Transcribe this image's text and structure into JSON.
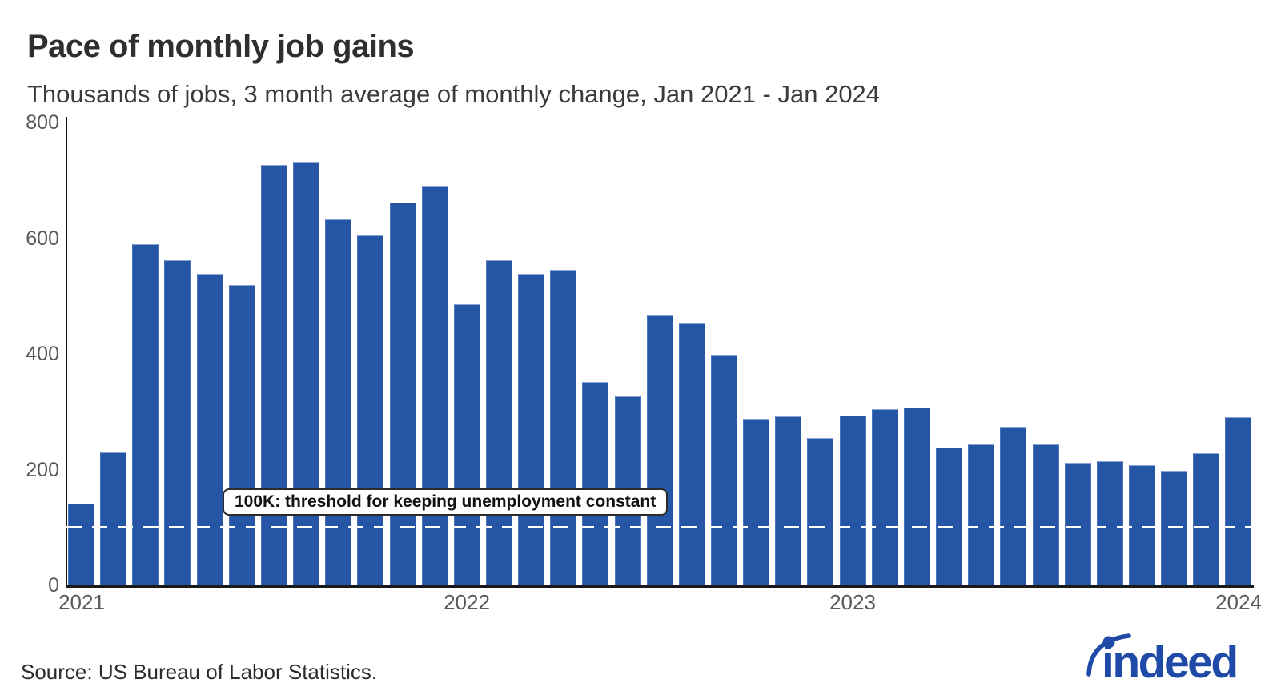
{
  "header": {
    "title": "Pace of monthly job gains",
    "subtitle": "Thousands of jobs, 3 month average of monthly change, Jan 2021 - Jan 2024"
  },
  "chart_data": {
    "type": "bar",
    "title": "Pace of monthly job gains",
    "subtitle": "Thousands of jobs, 3 month average of monthly change, Jan 2021 - Jan 2024",
    "categories": [
      "Jan 2021",
      "Feb 2021",
      "Mar 2021",
      "Apr 2021",
      "May 2021",
      "Jun 2021",
      "Jul 2021",
      "Aug 2021",
      "Sep 2021",
      "Oct 2021",
      "Nov 2021",
      "Dec 2021",
      "Jan 2022",
      "Feb 2022",
      "Mar 2022",
      "Apr 2022",
      "May 2022",
      "Jun 2022",
      "Jul 2022",
      "Aug 2022",
      "Sep 2022",
      "Oct 2022",
      "Nov 2022",
      "Dec 2022",
      "Jan 2023",
      "Feb 2023",
      "Mar 2023",
      "Apr 2023",
      "May 2023",
      "Jun 2023",
      "Jul 2023",
      "Aug 2023",
      "Sep 2023",
      "Oct 2023",
      "Nov 2023",
      "Dec 2023",
      "Jan 2024"
    ],
    "values": [
      141,
      230,
      589,
      562,
      538,
      519,
      726,
      732,
      632,
      605,
      661,
      690,
      486,
      562,
      539,
      545,
      352,
      327,
      466,
      453,
      398,
      288,
      292,
      254,
      294,
      304,
      307,
      238,
      243,
      274,
      243,
      212,
      214,
      208,
      198,
      228,
      291
    ],
    "ylabel": "Thousands of jobs",
    "xlabel": "",
    "ylim": [
      0,
      800
    ],
    "yticks": [
      0,
      200,
      400,
      600,
      800
    ],
    "xticks": {
      "labels": [
        "2021",
        "2022",
        "2023",
        "2024"
      ],
      "bar_indices": [
        0,
        12,
        24,
        36
      ]
    },
    "grid": false,
    "legend": "none",
    "threshold": {
      "value": 100,
      "label": "100K: threshold for keeping unemployment constant",
      "style": "white dashed line"
    }
  },
  "colors": {
    "bar_fill": "#2456a5",
    "bar_edge_top": "#8aa6d6",
    "axis": "#1a1a1a",
    "threshold_line": "#ffffff",
    "logo_blue": "#1f4aa8"
  },
  "footer": {
    "source": "Source: US Bureau of Labor Statistics.",
    "logo_text": "indeed"
  }
}
